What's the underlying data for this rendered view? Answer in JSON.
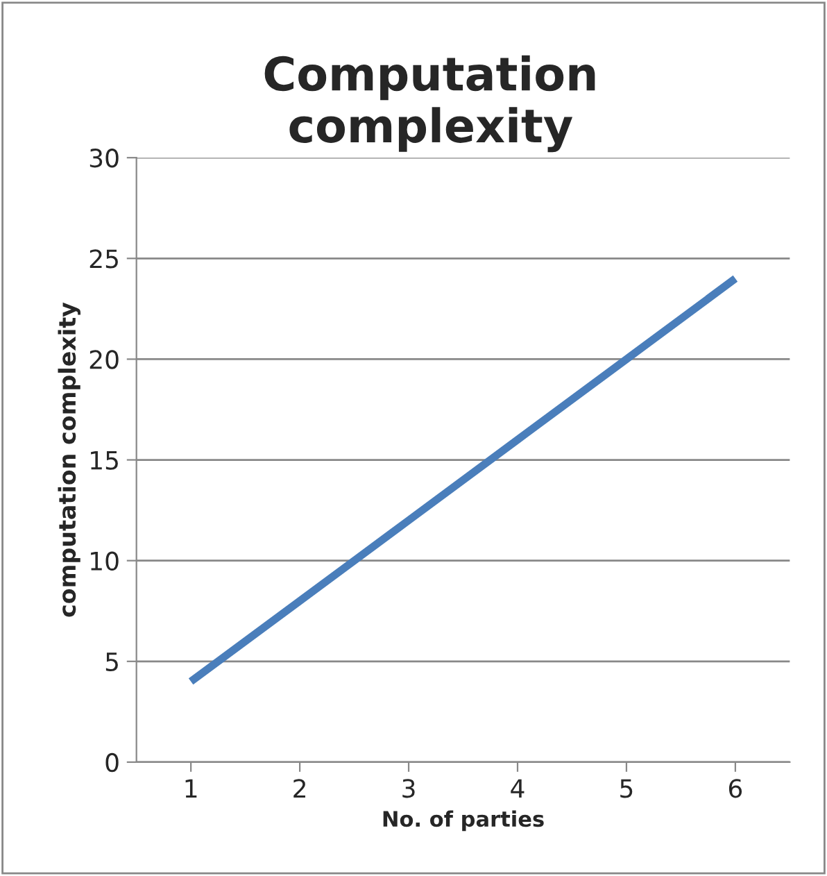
{
  "chart_data": {
    "type": "line",
    "title": "Computation complexity",
    "xlabel": "No. of parties",
    "ylabel": "computation complexity",
    "categories": [
      "1",
      "2",
      "3",
      "4",
      "5",
      "6"
    ],
    "series": [
      {
        "color": "#4a7ebb",
        "values": [
          4,
          8,
          12,
          16,
          20,
          24
        ]
      }
    ],
    "ylim": [
      0,
      30
    ],
    "yticks": [
      0,
      5,
      10,
      15,
      20,
      25,
      30
    ],
    "grid": "y",
    "legend": false,
    "marker": "none",
    "line_style": "solid"
  }
}
